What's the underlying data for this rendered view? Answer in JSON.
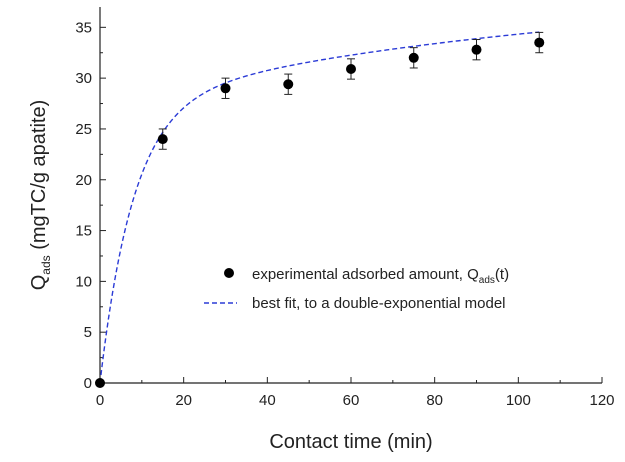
{
  "chart_data": {
    "type": "scatter",
    "title": "",
    "xlabel": "Contact time (min)",
    "ylabel": {
      "prefix": "Q",
      "subscript": "ads",
      "suffix": " (mgTC/g apatite)"
    },
    "xlim": [
      0,
      120
    ],
    "ylim": [
      0,
      37
    ],
    "xticks": [
      0,
      20,
      40,
      60,
      80,
      100,
      120
    ],
    "yticks": [
      0,
      5,
      10,
      15,
      20,
      25,
      30,
      35
    ],
    "grid": false,
    "legend_position": "center-right",
    "series": [
      {
        "name": {
          "prefix": "experimental adsorbed amount, Q",
          "subscript": "ads",
          "suffix": "(t)"
        },
        "kind": "scatter",
        "color": "#000000",
        "x": [
          0,
          15,
          30,
          45,
          60,
          75,
          90,
          105
        ],
        "y": [
          0,
          24.0,
          29.0,
          29.4,
          30.9,
          32.0,
          32.8,
          33.5
        ],
        "yerr": [
          0,
          1.0,
          1.0,
          1.0,
          1.0,
          1.0,
          1.0,
          1.0
        ]
      },
      {
        "name": "best fit, to a double-exponential model",
        "kind": "line",
        "style": "dashed",
        "color": "#2b3bd6",
        "model": {
          "form": "A1*(1-exp(-x/t1)) + A2*(1-exp(-x/t2))",
          "A1": 27.4,
          "t1": 8.0,
          "A2": 11.6,
          "t2": 110
        }
      }
    ]
  }
}
